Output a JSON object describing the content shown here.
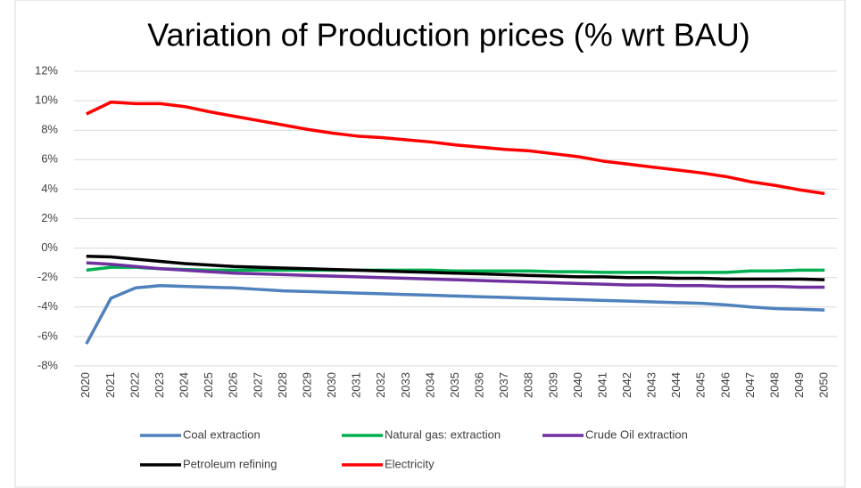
{
  "chart_data": {
    "type": "line",
    "title": "Variation of Production prices (% wrt BAU)",
    "categories": [
      "2020",
      "2021",
      "2022",
      "2023",
      "2024",
      "2025",
      "2026",
      "2027",
      "2028",
      "2029",
      "2030",
      "2031",
      "2032",
      "2033",
      "2034",
      "2035",
      "2036",
      "2037",
      "2038",
      "2039",
      "2040",
      "2041",
      "2042",
      "2043",
      "2044",
      "2045",
      "2046",
      "2047",
      "2048",
      "2049",
      "2050"
    ],
    "series": [
      {
        "name": "Coal extraction",
        "color": "#4f81bd",
        "values": [
          -6.5,
          -3.4,
          -2.7,
          -2.55,
          -2.6,
          -2.65,
          -2.7,
          -2.8,
          -2.9,
          -2.95,
          -3.0,
          -3.05,
          -3.1,
          -3.15,
          -3.2,
          -3.25,
          -3.3,
          -3.35,
          -3.4,
          -3.45,
          -3.5,
          -3.55,
          -3.6,
          -3.65,
          -3.7,
          -3.75,
          -3.85,
          -4.0,
          -4.1,
          -4.15,
          -4.2
        ]
      },
      {
        "name": "Natural gas: extraction",
        "color": "#00b050",
        "values": [
          -1.5,
          -1.3,
          -1.3,
          -1.4,
          -1.45,
          -1.5,
          -1.5,
          -1.5,
          -1.5,
          -1.5,
          -1.5,
          -1.5,
          -1.5,
          -1.5,
          -1.5,
          -1.55,
          -1.55,
          -1.55,
          -1.55,
          -1.6,
          -1.6,
          -1.65,
          -1.65,
          -1.65,
          -1.65,
          -1.65,
          -1.65,
          -1.55,
          -1.55,
          -1.5,
          -1.5
        ]
      },
      {
        "name": "Crude Oil extraction",
        "color": "#7030a0",
        "values": [
          -1.0,
          -1.1,
          -1.25,
          -1.4,
          -1.5,
          -1.6,
          -1.7,
          -1.75,
          -1.8,
          -1.85,
          -1.9,
          -1.95,
          -2.0,
          -2.05,
          -2.1,
          -2.15,
          -2.2,
          -2.25,
          -2.3,
          -2.35,
          -2.4,
          -2.45,
          -2.5,
          -2.5,
          -2.55,
          -2.55,
          -2.6,
          -2.6,
          -2.6,
          -2.65,
          -2.65
        ]
      },
      {
        "name": "Petroleum refining",
        "color": "#000000",
        "values": [
          -0.55,
          -0.6,
          -0.75,
          -0.9,
          -1.05,
          -1.15,
          -1.25,
          -1.3,
          -1.35,
          -1.4,
          -1.45,
          -1.5,
          -1.55,
          -1.6,
          -1.65,
          -1.7,
          -1.75,
          -1.8,
          -1.85,
          -1.9,
          -1.95,
          -1.95,
          -2.0,
          -2.0,
          -2.05,
          -2.05,
          -2.1,
          -2.1,
          -2.1,
          -2.1,
          -2.15
        ]
      },
      {
        "name": "Electricity",
        "color": "#ff0000",
        "values": [
          9.1,
          9.9,
          9.8,
          9.8,
          9.6,
          9.25,
          8.95,
          8.65,
          8.35,
          8.05,
          7.8,
          7.6,
          7.5,
          7.35,
          7.2,
          7.0,
          6.85,
          6.7,
          6.6,
          6.4,
          6.2,
          5.9,
          5.7,
          5.5,
          5.3,
          5.1,
          4.85,
          4.5,
          4.25,
          3.95,
          3.7
        ]
      }
    ],
    "ylim": [
      -8,
      12
    ],
    "yticks": [
      {
        "value": -8,
        "label": "-8%"
      },
      {
        "value": -6,
        "label": "-6%"
      },
      {
        "value": -4,
        "label": "-4%"
      },
      {
        "value": -2,
        "label": "-2%"
      },
      {
        "value": 0,
        "label": "0%"
      },
      {
        "value": 2,
        "label": "2%"
      },
      {
        "value": 4,
        "label": "4%"
      },
      {
        "value": 6,
        "label": "6%"
      },
      {
        "value": 8,
        "label": "8%"
      },
      {
        "value": 10,
        "label": "10%"
      },
      {
        "value": 12,
        "label": "12%"
      }
    ],
    "grid": true,
    "legend": "bottom"
  }
}
